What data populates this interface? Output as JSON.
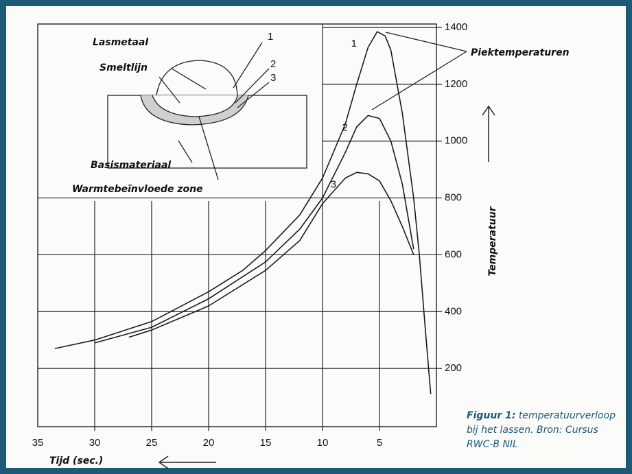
{
  "chart_data": {
    "type": "line",
    "xlim": [
      35,
      0
    ],
    "ylim": [
      0,
      1400
    ],
    "xticks": [
      35,
      30,
      25,
      20,
      15,
      10,
      5
    ],
    "yticks": [
      200,
      400,
      600,
      800,
      1000,
      1200,
      1400
    ],
    "x_label": "Tijd (sec.)",
    "y_label": "Temperatuur",
    "annotation": "Piektemperaturen",
    "series": [
      {
        "name": "1",
        "color": "#1a1a1a",
        "x": [
          33.5,
          30,
          25,
          20,
          17,
          15,
          12,
          10,
          8,
          7,
          6,
          5.2,
          4.5,
          4,
          3,
          2,
          1.5,
          1,
          0.5
        ],
        "values": [
          270,
          300,
          365,
          470,
          545,
          615,
          740,
          870,
          1060,
          1200,
          1330,
          1385,
          1370,
          1320,
          1100,
          800,
          600,
          350,
          110
        ]
      },
      {
        "name": "2",
        "color": "#1a1a1a",
        "x": [
          30,
          25,
          20,
          15,
          12,
          10,
          8,
          7,
          6,
          5,
          4,
          3,
          2
        ],
        "values": [
          290,
          345,
          445,
          575,
          690,
          800,
          960,
          1050,
          1090,
          1080,
          1000,
          850,
          620
        ]
      },
      {
        "name": "3",
        "color": "#1a1a1a",
        "x": [
          27,
          25,
          20,
          15,
          12,
          10,
          8,
          7,
          6,
          5,
          4,
          3,
          2
        ],
        "values": [
          310,
          335,
          420,
          545,
          650,
          780,
          870,
          890,
          885,
          860,
          790,
          700,
          600
        ]
      }
    ]
  },
  "inset": {
    "labels": [
      "Lasmetaal",
      "Smeltlijn",
      "Basismateriaal",
      "Warmtebeïnvloede zone"
    ],
    "numbers": [
      "1",
      "2",
      "3"
    ]
  },
  "caption": {
    "label": "Figuur 1:",
    "text": "temperatuurverloop bij het lassen. Bron: Cursus RWC-B NIL"
  }
}
